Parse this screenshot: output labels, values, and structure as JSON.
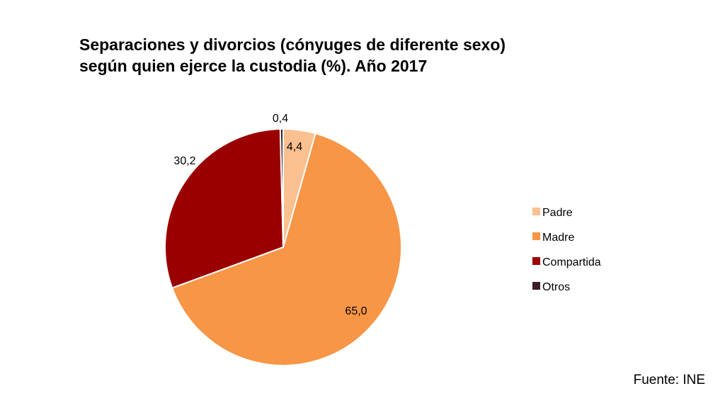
{
  "chart_data": {
    "type": "pie",
    "title_line1": "Separaciones y divorcios (cónyuges de diferente sexo)",
    "title_line2": "según quien ejerce la custodia (%). Año 2017",
    "slices": [
      {
        "label": "Padre",
        "value": 4.4,
        "display": "4,4",
        "color": "#fac090"
      },
      {
        "label": "Madre",
        "value": 65.0,
        "display": "65,0",
        "color": "#f79646"
      },
      {
        "label": "Compartida",
        "value": 30.2,
        "display": "30,2",
        "color": "#9b0000"
      },
      {
        "label": "Otros",
        "value": 0.4,
        "display": "0,4",
        "color": "#3b1e28"
      }
    ],
    "legend_position": "right"
  },
  "source": "Fuente: INE"
}
